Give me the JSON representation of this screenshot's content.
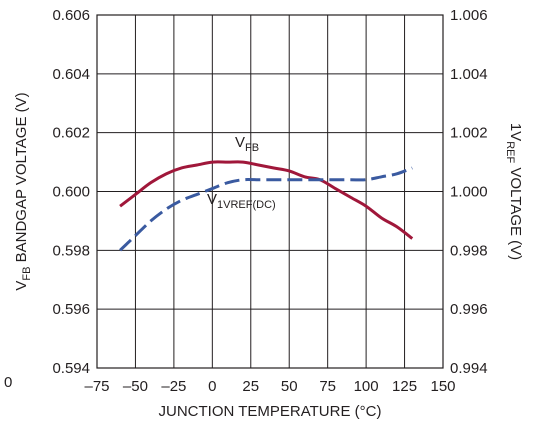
{
  "chart_data": {
    "type": "line",
    "xlabel": "JUNCTION TEMPERATURE (°C)",
    "ylabel_left": {
      "pre": "V",
      "sub": "FB",
      "post": " BANDGAP VOLTAGE (V)"
    },
    "ylabel_right": {
      "pre": "1V",
      "sub": "REF",
      "post": " VOLTAGE (V)"
    },
    "xlim": [
      -75,
      150
    ],
    "ylim_left": [
      0.594,
      0.606
    ],
    "ylim_right": [
      0.994,
      1.006
    ],
    "x_ticks": [
      "–75",
      "–50",
      "–25",
      "0",
      "25",
      "50",
      "75",
      "100",
      "125",
      "150"
    ],
    "x_tick_values": [
      -75,
      -50,
      -25,
      0,
      25,
      50,
      75,
      100,
      125,
      150
    ],
    "y_ticks_left": [
      "0.606",
      "0.604",
      "0.602",
      "0.600",
      "0.598",
      "0.596",
      "0.594"
    ],
    "y_tick_values_left": [
      0.606,
      0.604,
      0.602,
      0.6,
      0.598,
      0.596,
      0.594
    ],
    "y_ticks_right": [
      "1.006",
      "1.004",
      "1.002",
      "1.000",
      "0.998",
      "0.996",
      "0.994"
    ],
    "y_tick_values_right": [
      1.006,
      1.004,
      1.002,
      1.0,
      0.998,
      0.996,
      0.994
    ],
    "grid": true,
    "stray_label": "0",
    "series": [
      {
        "label": {
          "pre": "V",
          "sub": "FB"
        },
        "axis": "left",
        "color": "#a0173a",
        "style": "solid",
        "x": [
          -60,
          -50,
          -40,
          -30,
          -20,
          -10,
          0,
          10,
          20,
          30,
          40,
          50,
          60,
          70,
          80,
          90,
          100,
          110,
          120,
          130
        ],
        "y": [
          0.5995,
          0.5999,
          0.6003,
          0.6006,
          0.6008,
          0.6009,
          0.601,
          0.601,
          0.601,
          0.6009,
          0.6008,
          0.6007,
          0.6005,
          0.6004,
          0.6001,
          0.5998,
          0.5995,
          0.5991,
          0.5988,
          0.5984
        ]
      },
      {
        "label": {
          "pre": "V",
          "sub": "1VREF(DC)"
        },
        "axis": "right",
        "color": "#3a5aa0",
        "style": "dashed",
        "x": [
          -60,
          -50,
          -40,
          -30,
          -20,
          -10,
          0,
          10,
          20,
          30,
          40,
          50,
          60,
          70,
          80,
          90,
          100,
          110,
          120,
          130
        ],
        "y": [
          0.998,
          0.9985,
          0.999,
          0.9994,
          0.9997,
          0.9999,
          1.0001,
          1.0003,
          1.0004,
          1.0004,
          1.0004,
          1.0004,
          1.0004,
          1.0004,
          1.0004,
          1.0004,
          1.0004,
          1.0005,
          1.0006,
          1.0008
        ]
      }
    ]
  }
}
